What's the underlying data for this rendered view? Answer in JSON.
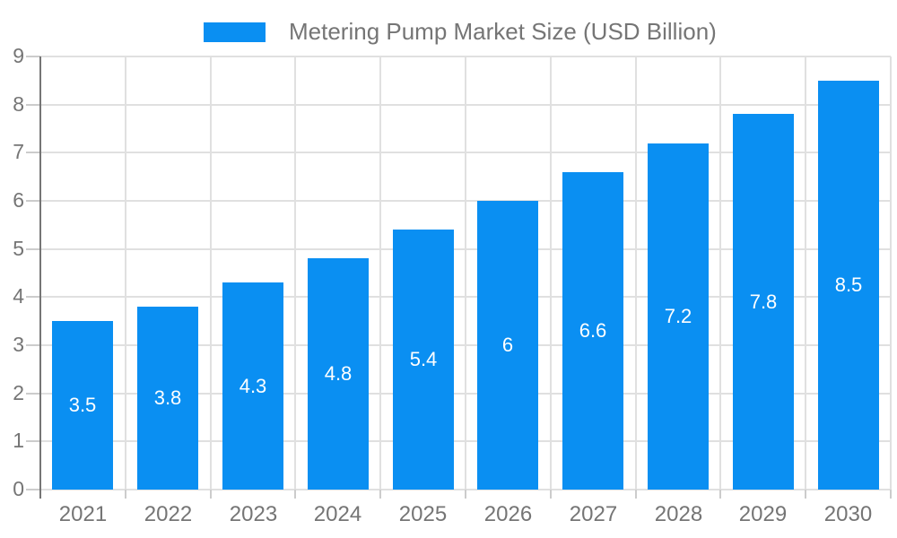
{
  "legend": {
    "label": "Metering Pump Market Size (USD Billion)",
    "swatch_color": "#0a8ff2"
  },
  "chart_data": {
    "type": "bar",
    "title": "Metering Pump Market Size (USD Billion)",
    "categories": [
      "2021",
      "2022",
      "2023",
      "2024",
      "2025",
      "2026",
      "2027",
      "2028",
      "2029",
      "2030"
    ],
    "values": [
      3.5,
      3.8,
      4.3,
      4.8,
      5.4,
      6,
      6.6,
      7.2,
      7.8,
      8.5
    ],
    "series_name": "Metering Pump Market Size (USD Billion)",
    "xlabel": "",
    "ylabel": "",
    "ylim": [
      0,
      9
    ],
    "yticks": [
      0,
      1,
      2,
      3,
      4,
      5,
      6,
      7,
      8,
      9
    ],
    "grid": true,
    "legend_position": "top-center",
    "value_label_position": "inside-center",
    "colors": {
      "bar": "#0a8ff2",
      "grid": "#e0e0e0",
      "axis_line": "#757575",
      "tick_mark": "#cccccc",
      "tick_text": "#757575",
      "bar_label_text": "#ffffff",
      "background": "#ffffff"
    }
  }
}
